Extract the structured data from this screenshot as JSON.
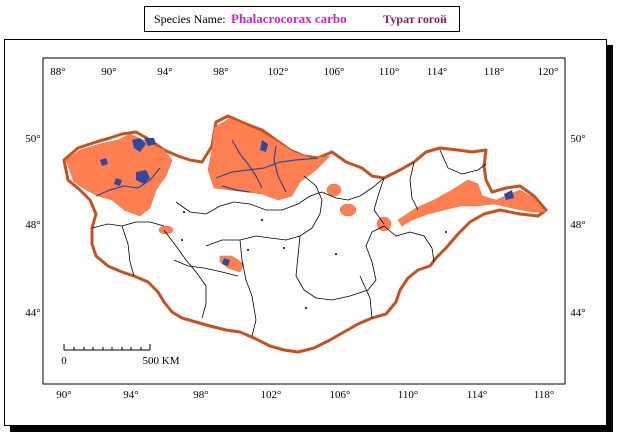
{
  "header": {
    "species_label": "Species Name:",
    "latin_name": "Phalacrocorax carbo",
    "local_name": "Турат гогой"
  },
  "map": {
    "top_longitudes": [
      "88°",
      "90°",
      "94°",
      "98°",
      "102°",
      "106°",
      "110°",
      "114°",
      "118°",
      "120°"
    ],
    "bottom_longitudes": [
      "90°",
      "94°",
      "98°",
      "102°",
      "106°",
      "110°",
      "114°",
      "118°"
    ],
    "left_latitudes": [
      "50°",
      "48°",
      "44°"
    ],
    "right_latitudes": [
      "50°",
      "48°",
      "44°"
    ],
    "scale_bar": {
      "start_label": "0",
      "end_label": "500 KM"
    },
    "colors": {
      "border": "#c8501e",
      "range": "#ff7f50",
      "water": "#2e4a9e",
      "admin_lines": "#000000"
    }
  }
}
